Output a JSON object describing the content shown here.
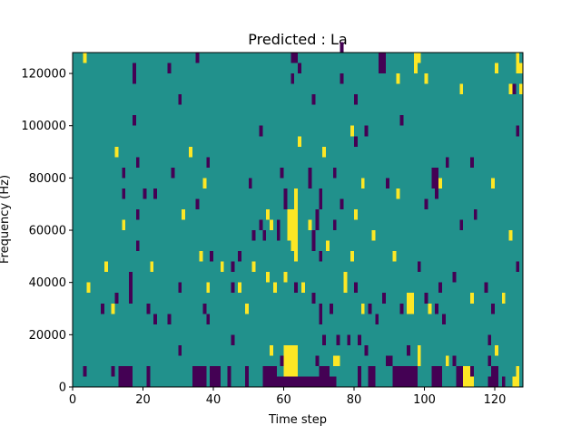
{
  "chart_data": {
    "type": "heatmap",
    "title": "Predicted : La",
    "xlabel": "Time step",
    "ylabel": "Frequency (Hz)",
    "xlim": [
      0,
      128
    ],
    "ylim": [
      0,
      128000
    ],
    "x_ticks": [
      0,
      20,
      40,
      60,
      80,
      100,
      120
    ],
    "y_ticks": [
      0,
      20000,
      40000,
      60000,
      80000,
      100000,
      120000
    ],
    "x_tick_labels": [
      "0",
      "20",
      "40",
      "60",
      "80",
      "100",
      "120"
    ],
    "y_tick_labels": [
      "0",
      "20000",
      "40000",
      "60000",
      "80000",
      "100000",
      "120000"
    ],
    "grid": false,
    "colormap": "viridis",
    "colors": {
      "background": "#21918c",
      "low": "#440154",
      "high": "#fde725"
    },
    "background_value": 0,
    "cell_height_hz": 4000,
    "cells_high": [
      [
        3,
        124000
      ],
      [
        12,
        88000
      ],
      [
        33,
        88000
      ],
      [
        37,
        76000
      ],
      [
        31,
        64000
      ],
      [
        55,
        64000
      ],
      [
        56,
        60000
      ],
      [
        61,
        64000
      ],
      [
        61,
        60000
      ],
      [
        61,
        56000
      ],
      [
        62,
        64000
      ],
      [
        62,
        60000
      ],
      [
        62,
        56000
      ],
      [
        62,
        52000
      ],
      [
        63,
        72000
      ],
      [
        63,
        68000
      ],
      [
        63,
        64000
      ],
      [
        63,
        60000
      ],
      [
        63,
        56000
      ],
      [
        63,
        52000
      ],
      [
        63,
        48000
      ],
      [
        64,
        92000
      ],
      [
        71,
        88000
      ],
      [
        79,
        96000
      ],
      [
        82,
        76000
      ],
      [
        91,
        48000
      ],
      [
        92,
        116000
      ],
      [
        92,
        72000
      ],
      [
        97,
        124000
      ],
      [
        97,
        120000
      ],
      [
        98,
        124000
      ],
      [
        100,
        116000
      ],
      [
        104,
        76000
      ],
      [
        110,
        112000
      ],
      [
        111,
        4000
      ],
      [
        111,
        0
      ],
      [
        112,
        4000
      ],
      [
        112,
        0
      ],
      [
        113,
        0
      ],
      [
        119,
        76000
      ],
      [
        120,
        120000
      ],
      [
        124,
        112000
      ],
      [
        125,
        0
      ],
      [
        126,
        124000
      ],
      [
        126,
        120000
      ],
      [
        126,
        4000
      ],
      [
        126,
        0
      ],
      [
        127,
        120000
      ],
      [
        127,
        112000
      ],
      [
        14,
        60000
      ],
      [
        9,
        44000
      ],
      [
        4,
        36000
      ],
      [
        11,
        28000
      ],
      [
        22,
        44000
      ],
      [
        38,
        36000
      ],
      [
        42,
        44000
      ],
      [
        47,
        36000
      ],
      [
        49,
        28000
      ],
      [
        51,
        44000
      ],
      [
        55,
        40000
      ],
      [
        57,
        36000
      ],
      [
        60,
        40000
      ],
      [
        60,
        12000
      ],
      [
        60,
        8000
      ],
      [
        60,
        4000
      ],
      [
        61,
        12000
      ],
      [
        61,
        8000
      ],
      [
        61,
        4000
      ],
      [
        62,
        12000
      ],
      [
        62,
        8000
      ],
      [
        62,
        4000
      ],
      [
        63,
        12000
      ],
      [
        63,
        8000
      ],
      [
        63,
        4000
      ],
      [
        65,
        36000
      ],
      [
        74,
        8000
      ],
      [
        75,
        8000
      ],
      [
        77,
        40000
      ],
      [
        77,
        36000
      ],
      [
        79,
        48000
      ],
      [
        80,
        64000
      ],
      [
        85,
        56000
      ],
      [
        95,
        32000
      ],
      [
        95,
        28000
      ],
      [
        96,
        32000
      ],
      [
        96,
        28000
      ],
      [
        101,
        28000
      ],
      [
        106,
        8000
      ],
      [
        113,
        32000
      ],
      [
        120,
        12000
      ],
      [
        122,
        32000
      ],
      [
        124,
        56000
      ],
      [
        36,
        48000
      ],
      [
        56,
        12000
      ],
      [
        67,
        60000
      ],
      [
        72,
        52000
      ],
      [
        82,
        28000
      ],
      [
        98,
        12000
      ],
      [
        98,
        8000
      ]
    ],
    "cells_low": [
      [
        17,
        120000
      ],
      [
        17,
        116000
      ],
      [
        27,
        120000
      ],
      [
        35,
        124000
      ],
      [
        62,
        124000
      ],
      [
        62,
        116000
      ],
      [
        63,
        124000
      ],
      [
        64,
        120000
      ],
      [
        68,
        108000
      ],
      [
        76,
        128000
      ],
      [
        76,
        116000
      ],
      [
        80,
        108000
      ],
      [
        83,
        96000
      ],
      [
        87,
        124000
      ],
      [
        87,
        120000
      ],
      [
        88,
        124000
      ],
      [
        88,
        120000
      ],
      [
        17,
        100000
      ],
      [
        30,
        108000
      ],
      [
        53,
        96000
      ],
      [
        80,
        92000
      ],
      [
        93,
        100000
      ],
      [
        125,
        112000
      ],
      [
        126,
        96000
      ],
      [
        102,
        80000
      ],
      [
        103,
        80000
      ],
      [
        102,
        76000
      ],
      [
        103,
        76000
      ],
      [
        106,
        84000
      ],
      [
        113,
        84000
      ],
      [
        14,
        80000
      ],
      [
        18,
        84000
      ],
      [
        14,
        72000
      ],
      [
        18,
        64000
      ],
      [
        20,
        72000
      ],
      [
        23,
        72000
      ],
      [
        28,
        80000
      ],
      [
        35,
        68000
      ],
      [
        38,
        84000
      ],
      [
        50,
        76000
      ],
      [
        59,
        80000
      ],
      [
        60,
        72000
      ],
      [
        60,
        68000
      ],
      [
        58,
        60000
      ],
      [
        58,
        56000
      ],
      [
        67,
        80000
      ],
      [
        67,
        76000
      ],
      [
        70,
        72000
      ],
      [
        70,
        68000
      ],
      [
        69,
        64000
      ],
      [
        69,
        60000
      ],
      [
        68,
        56000
      ],
      [
        68,
        52000
      ],
      [
        70,
        48000
      ],
      [
        74,
        80000
      ],
      [
        76,
        68000
      ],
      [
        74,
        60000
      ],
      [
        89,
        76000
      ],
      [
        100,
        68000
      ],
      [
        103,
        72000
      ],
      [
        110,
        60000
      ],
      [
        114,
        64000
      ],
      [
        18,
        52000
      ],
      [
        16,
        40000
      ],
      [
        16,
        36000
      ],
      [
        16,
        32000
      ],
      [
        12,
        32000
      ],
      [
        8,
        28000
      ],
      [
        21,
        28000
      ],
      [
        23,
        24000
      ],
      [
        27,
        24000
      ],
      [
        30,
        36000
      ],
      [
        37,
        28000
      ],
      [
        38,
        24000
      ],
      [
        39,
        48000
      ],
      [
        45,
        44000
      ],
      [
        45,
        36000
      ],
      [
        47,
        48000
      ],
      [
        51,
        56000
      ],
      [
        53,
        60000
      ],
      [
        54,
        56000
      ],
      [
        63,
        36000
      ],
      [
        68,
        32000
      ],
      [
        70,
        24000
      ],
      [
        70,
        28000
      ],
      [
        73,
        28000
      ],
      [
        80,
        36000
      ],
      [
        84,
        28000
      ],
      [
        86,
        24000
      ],
      [
        88,
        32000
      ],
      [
        93,
        28000
      ],
      [
        98,
        44000
      ],
      [
        100,
        32000
      ],
      [
        104,
        36000
      ],
      [
        103,
        28000
      ],
      [
        105,
        24000
      ],
      [
        108,
        40000
      ],
      [
        117,
        36000
      ],
      [
        119,
        28000
      ],
      [
        126,
        44000
      ],
      [
        118,
        16000
      ],
      [
        118,
        8000
      ],
      [
        95,
        12000
      ],
      [
        89,
        8000
      ],
      [
        83,
        12000
      ],
      [
        81,
        16000
      ],
      [
        78,
        16000
      ],
      [
        75,
        16000
      ],
      [
        71,
        16000
      ],
      [
        69,
        8000
      ],
      [
        70,
        4000
      ],
      [
        71,
        4000
      ],
      [
        72,
        4000
      ],
      [
        71,
        0
      ],
      [
        72,
        0
      ],
      [
        73,
        0
      ],
      [
        74,
        0
      ],
      [
        70,
        0
      ],
      [
        81,
        4000
      ],
      [
        81,
        0
      ],
      [
        84,
        4000
      ],
      [
        84,
        0
      ],
      [
        85,
        4000
      ],
      [
        85,
        0
      ],
      [
        90,
        8000
      ],
      [
        91,
        4000
      ],
      [
        91,
        0
      ],
      [
        92,
        4000
      ],
      [
        92,
        0
      ],
      [
        93,
        4000
      ],
      [
        93,
        0
      ],
      [
        94,
        4000
      ],
      [
        94,
        0
      ],
      [
        95,
        4000
      ],
      [
        95,
        0
      ],
      [
        96,
        4000
      ],
      [
        96,
        0
      ],
      [
        97,
        4000
      ],
      [
        97,
        0
      ],
      [
        102,
        4000
      ],
      [
        102,
        0
      ],
      [
        103,
        4000
      ],
      [
        103,
        0
      ],
      [
        104,
        4000
      ],
      [
        104,
        0
      ],
      [
        108,
        8000
      ],
      [
        109,
        4000
      ],
      [
        109,
        0
      ],
      [
        110,
        4000
      ],
      [
        110,
        0
      ],
      [
        113,
        4000
      ],
      [
        118,
        0
      ],
      [
        119,
        4000
      ],
      [
        119,
        0
      ],
      [
        120,
        4000
      ],
      [
        120,
        0
      ],
      [
        122,
        0
      ],
      [
        3,
        4000
      ],
      [
        11,
        4000
      ],
      [
        13,
        4000
      ],
      [
        13,
        0
      ],
      [
        14,
        4000
      ],
      [
        14,
        0
      ],
      [
        15,
        4000
      ],
      [
        15,
        0
      ],
      [
        16,
        4000
      ],
      [
        16,
        0
      ],
      [
        21,
        4000
      ],
      [
        21,
        0
      ],
      [
        34,
        4000
      ],
      [
        34,
        0
      ],
      [
        35,
        4000
      ],
      [
        35,
        0
      ],
      [
        36,
        4000
      ],
      [
        36,
        0
      ],
      [
        37,
        4000
      ],
      [
        37,
        0
      ],
      [
        39,
        4000
      ],
      [
        39,
        0
      ],
      [
        40,
        4000
      ],
      [
        40,
        0
      ],
      [
        41,
        4000
      ],
      [
        41,
        0
      ],
      [
        44,
        4000
      ],
      [
        44,
        0
      ],
      [
        49,
        4000
      ],
      [
        49,
        0
      ],
      [
        54,
        4000
      ],
      [
        54,
        0
      ],
      [
        55,
        4000
      ],
      [
        55,
        0
      ],
      [
        56,
        4000
      ],
      [
        56,
        0
      ],
      [
        57,
        4000
      ],
      [
        57,
        0
      ],
      [
        58,
        0
      ],
      [
        59,
        8000
      ],
      [
        59,
        0
      ],
      [
        60,
        0
      ],
      [
        61,
        0
      ],
      [
        62,
        0
      ],
      [
        63,
        0
      ],
      [
        64,
        0
      ],
      [
        65,
        0
      ],
      [
        66,
        0
      ],
      [
        67,
        0
      ],
      [
        68,
        0
      ],
      [
        69,
        0
      ],
      [
        30,
        12000
      ],
      [
        45,
        16000
      ]
    ]
  }
}
